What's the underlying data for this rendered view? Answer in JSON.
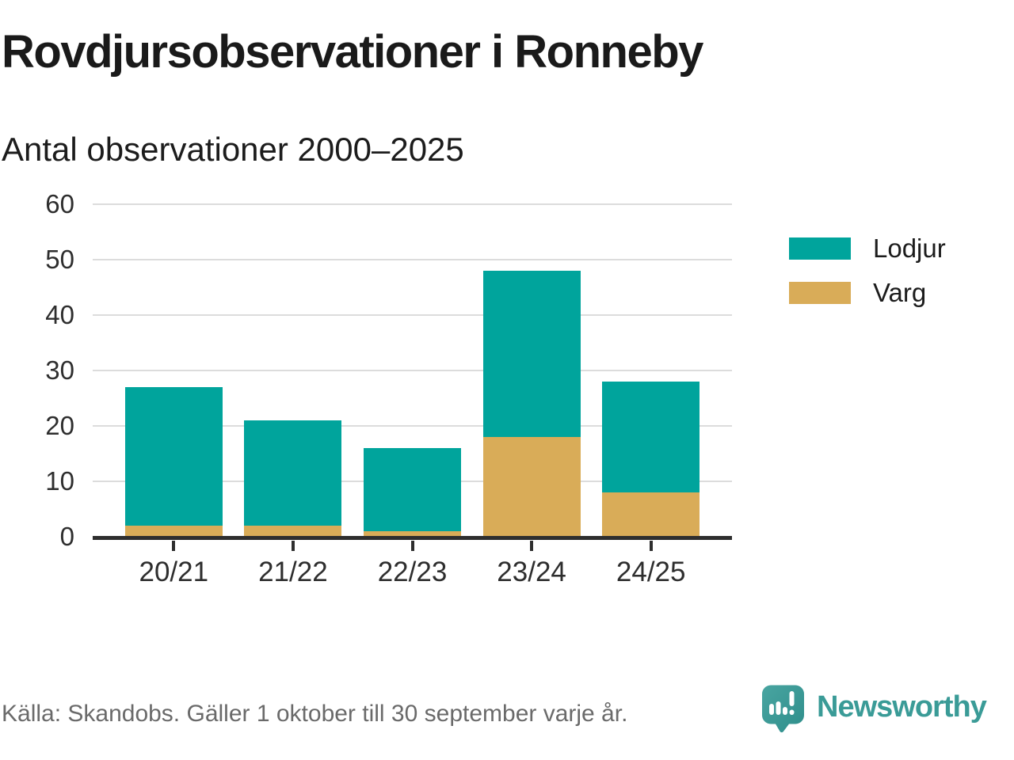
{
  "title": "Rovdjursobservationer i Ronneby",
  "subtitle": "Antal observationer 2000–2025",
  "footer": {
    "source": "Källa: Skandobs. Gäller 1 oktober till 30 september varje år.",
    "brand": "Newsworthy"
  },
  "colors": {
    "lodjur": "#00a49c",
    "varg": "#d9ac58",
    "axis": "#2e2e2e",
    "grid": "#dcdcdc",
    "brand_teal": "#3a9b97",
    "text": "#1a1a1a",
    "muted_text": "#6a6a6a"
  },
  "chart_data": {
    "type": "bar",
    "stacked": true,
    "title": "Rovdjursobservationer i Ronneby",
    "subtitle": "Antal observationer 2000–2025",
    "categories": [
      "20/21",
      "21/22",
      "22/23",
      "23/24",
      "24/25"
    ],
    "series": [
      {
        "name": "Lodjur",
        "color": "#00a49c",
        "values": [
          25,
          19,
          15,
          30,
          20
        ]
      },
      {
        "name": "Varg",
        "color": "#d9ac58",
        "values": [
          2,
          2,
          1,
          18,
          8
        ]
      }
    ],
    "stack_bottom_to_top": [
      "Varg",
      "Lodjur"
    ],
    "totals": [
      27,
      21,
      16,
      48,
      28
    ],
    "xlabel": "",
    "ylabel": "",
    "ylim": [
      0,
      60
    ],
    "yticks": [
      0,
      10,
      20,
      30,
      40,
      50,
      60
    ],
    "grid": true,
    "legend_position": "right"
  },
  "legend": {
    "items": [
      {
        "label": "Lodjur",
        "color": "#00a49c"
      },
      {
        "label": "Varg",
        "color": "#d9ac58"
      }
    ]
  }
}
